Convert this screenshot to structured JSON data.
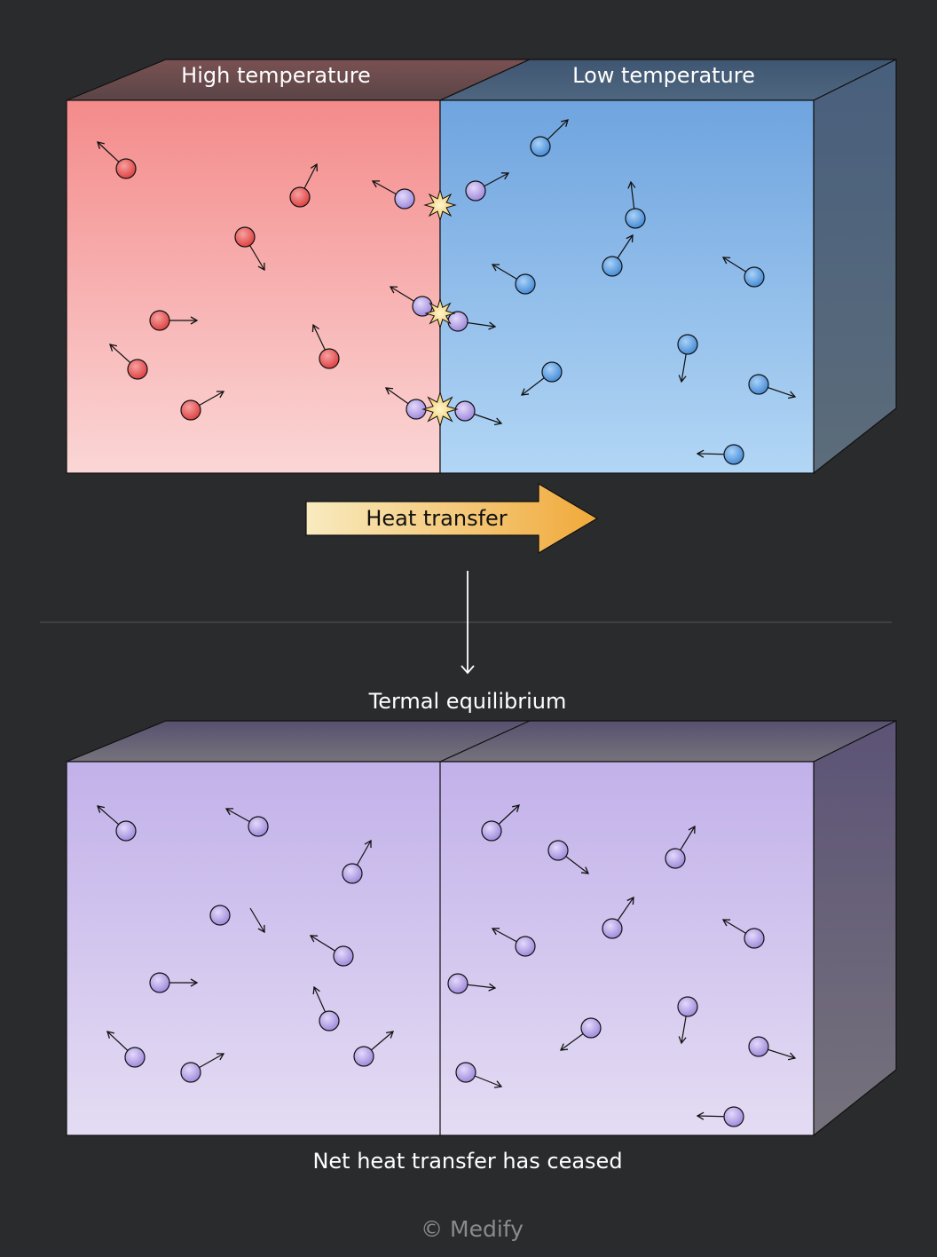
{
  "top_box": {
    "left_label": "High temperature",
    "right_label": "Low temperature"
  },
  "arrow_label": "Heat transfer",
  "equilibrium_label": "Termal equilibrium",
  "caption": "Net heat transfer has ceased",
  "footer": "© Medify"
}
